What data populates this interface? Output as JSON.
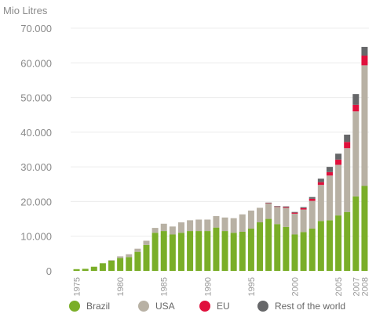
{
  "chart_data": {
    "type": "bar",
    "stacked": true,
    "ylabel": "Mio Litres",
    "ylim": [
      0,
      70000
    ],
    "yticks": [
      "0",
      "10.000",
      "20.000",
      "30.000",
      "40.000",
      "50.000",
      "60.000",
      "70.000"
    ],
    "ytick_values": [
      0,
      10000,
      20000,
      30000,
      40000,
      50000,
      60000,
      70000
    ],
    "grid": true,
    "legend_position": "bottom",
    "categories": [
      "1975",
      "1976",
      "1977",
      "1978",
      "1979",
      "1980",
      "1981",
      "1982",
      "1983",
      "1984",
      "1985",
      "1986",
      "1987",
      "1988",
      "1989",
      "1990",
      "1991",
      "1992",
      "1993",
      "1994",
      "1995",
      "1996",
      "1997",
      "1998",
      "1999",
      "2000",
      "2001",
      "2002",
      "2003",
      "2004",
      "2005",
      "2006",
      "2007",
      "2008"
    ],
    "xtick_labels": [
      "1975",
      "1980",
      "1985",
      "1990",
      "1995",
      "2000",
      "2005",
      "2007",
      "2008"
    ],
    "series": [
      {
        "name": "Brazil",
        "color": "#7aae28",
        "values": [
          500,
          600,
          1200,
          2200,
          3000,
          3700,
          4000,
          5500,
          7500,
          11000,
          11500,
          10500,
          11000,
          11500,
          11500,
          11500,
          12500,
          11500,
          11000,
          11300,
          12200,
          14000,
          15000,
          13500,
          12700,
          10500,
          11200,
          12200,
          14400,
          14600,
          16000,
          17000,
          21500,
          24500
        ]
      },
      {
        "name": "USA",
        "color": "#b8b1a4",
        "values": [
          0,
          0,
          0,
          0,
          100,
          500,
          800,
          900,
          1200,
          1400,
          2100,
          2300,
          3000,
          3100,
          3300,
          3300,
          3300,
          3900,
          4200,
          5000,
          5200,
          4200,
          4500,
          5000,
          5500,
          6000,
          6500,
          8000,
          10400,
          12900,
          14600,
          18400,
          24500,
          34800
        ]
      },
      {
        "name": "EU",
        "color": "#e0103c",
        "values": [
          0,
          0,
          0,
          0,
          0,
          0,
          0,
          0,
          0,
          0,
          0,
          0,
          0,
          0,
          0,
          0,
          0,
          0,
          0,
          0,
          0,
          0,
          100,
          100,
          200,
          300,
          400,
          600,
          800,
          1000,
          1500,
          1800,
          1900,
          2800
        ]
      },
      {
        "name": "Rest of the world",
        "color": "#666769",
        "values": [
          0,
          0,
          0,
          0,
          0,
          0,
          0,
          0,
          0,
          0,
          0,
          0,
          0,
          0,
          0,
          0,
          0,
          0,
          0,
          0,
          0,
          0,
          100,
          100,
          200,
          200,
          300,
          500,
          1000,
          1500,
          1700,
          2100,
          3100,
          2500
        ]
      }
    ]
  }
}
